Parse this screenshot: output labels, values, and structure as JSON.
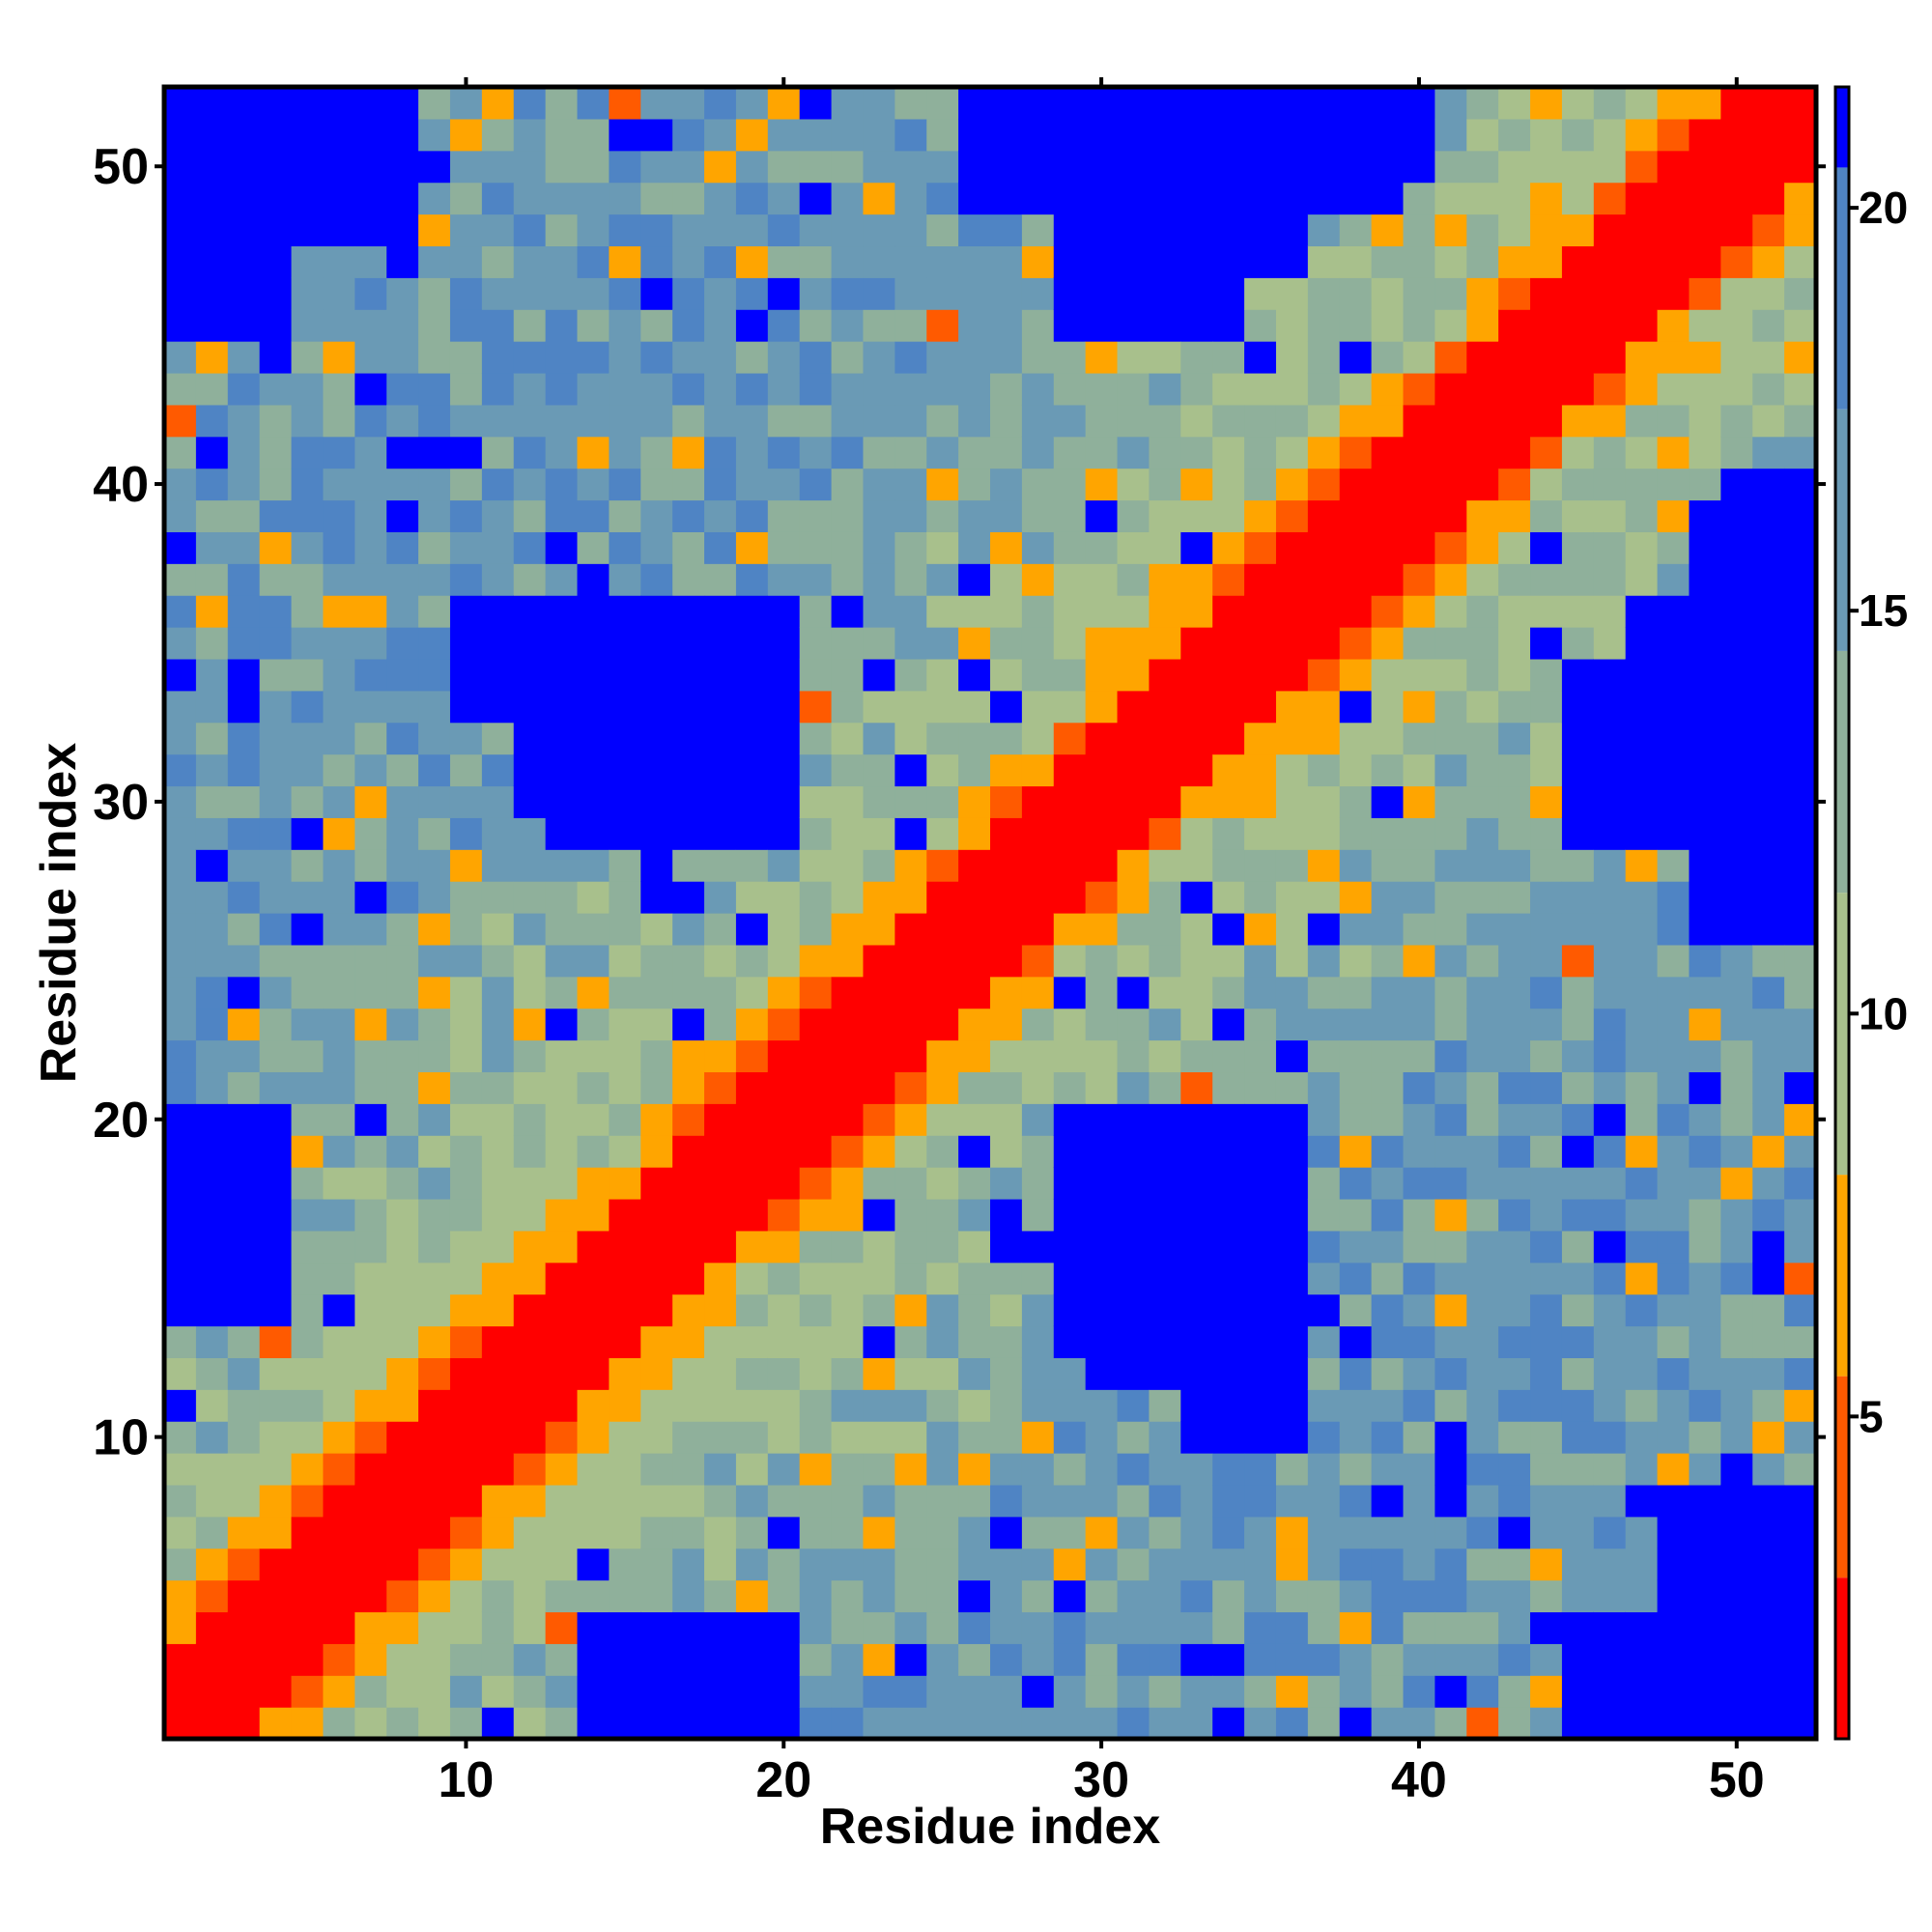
{
  "chart_data": {
    "type": "heatmap",
    "title": "",
    "xlabel": "Residue index",
    "ylabel": "Residue index",
    "n": 52,
    "x_ticks": [
      10,
      20,
      30,
      40,
      50
    ],
    "y_ticks": [
      10,
      20,
      30,
      40,
      50
    ],
    "x_tick_labels": [
      "10",
      "20",
      "30",
      "40",
      "50"
    ],
    "y_tick_labels": [
      "10",
      "20",
      "30",
      "40",
      "50"
    ],
    "colorbar": {
      "range": [
        1,
        21.5
      ],
      "ticks": [
        5,
        10,
        15,
        20
      ],
      "tick_labels": [
        "5",
        "10",
        "15",
        "20"
      ],
      "colors": [
        "#ff0000",
        "#ff5a00",
        "#ffa500",
        "#a8c08c",
        "#8fb09b",
        "#6a9ab5",
        "#4f84c4",
        "#0000ff"
      ]
    },
    "value_model": {
      "diagonal": "distance grows with |i - j|; near-diagonal band 1-8",
      "far_field_max": 21.5
    },
    "blue_regions": [
      {
        "x": [
          1,
          8
        ],
        "y": [
          48,
          52
        ]
      },
      {
        "x": [
          1,
          4
        ],
        "y": [
          45,
          49
        ]
      },
      {
        "x": [
          30,
          36
        ],
        "y": [
          47,
          52
        ]
      },
      {
        "x": [
          28,
          40
        ],
        "y": [
          50,
          52
        ]
      },
      {
        "x": [
          12,
          20
        ],
        "y": [
          31,
          36
        ]
      },
      {
        "x": [
          14,
          18
        ],
        "y": [
          29,
          32
        ]
      },
      {
        "x": [
          45,
          52
        ],
        "y": [
          29,
          34
        ]
      },
      {
        "x": [
          49,
          52
        ],
        "y": [
          33,
          39
        ]
      },
      {
        "x": [
          49,
          52
        ],
        "y": [
          26,
          29
        ]
      },
      {
        "x": [
          29,
          36
        ],
        "y": [
          13,
          20
        ]
      },
      {
        "x": [
          33,
          36
        ],
        "y": [
          10,
          13
        ]
      },
      {
        "x": [
          1,
          4
        ],
        "y": [
          14,
          20
        ]
      },
      {
        "x": [
          50,
          52
        ],
        "y": [
          1,
          8
        ]
      },
      {
        "x": [
          46,
          52
        ],
        "y": [
          1,
          4
        ]
      },
      {
        "x": [
          14,
          19
        ],
        "y": [
          1,
          3
        ]
      }
    ]
  }
}
